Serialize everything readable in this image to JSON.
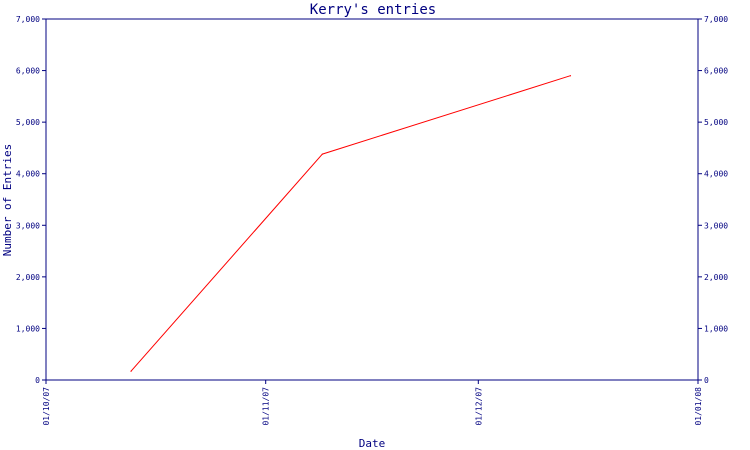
{
  "chart_data": {
    "type": "line",
    "title": "Kerry's entries",
    "xlabel": "Date",
    "ylabel": "Number of Entries",
    "x_ticks": [
      "01/10/07",
      "01/11/07",
      "01/12/07",
      "01/01/08"
    ],
    "y_ticks": [
      "0",
      "1,000",
      "2,000",
      "3,000",
      "4,000",
      "5,000",
      "6,000",
      "7,000"
    ],
    "xlim": [
      "2007-10-01",
      "2008-01-01"
    ],
    "ylim": [
      0,
      7000
    ],
    "grid": false,
    "legend": "none",
    "series": [
      {
        "points": [
          {
            "x": "2007-10-13",
            "y": 170
          },
          {
            "x": "2007-11-09",
            "y": 4380
          },
          {
            "x": "2007-12-14",
            "y": 5900
          }
        ]
      }
    ],
    "colors": {
      "axis": "#000080",
      "line": "#ff0000"
    }
  }
}
